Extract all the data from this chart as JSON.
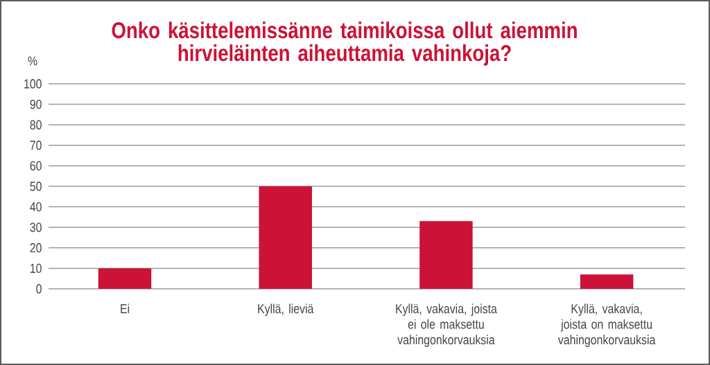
{
  "chart_data": {
    "type": "bar",
    "title": "Onko käsittelemissänne taimikoissa ollut aiemmin hirvieläinten aiheuttamia vahinkoja?",
    "ylabel": "%",
    "categories": [
      "Ei",
      "Kyllä, lieviä",
      "Kyllä, vakavia, joista ei ole maksettu vahingonkorvauksia",
      "Kyllä, vakavia, joista on maksettu vahingonkorvauksia"
    ],
    "values": [
      10,
      50,
      33,
      7
    ],
    "color": "#cc1236",
    "ylim": [
      0,
      100
    ],
    "yticks": [
      0,
      10,
      20,
      30,
      40,
      50,
      60,
      70,
      80,
      90,
      100
    ],
    "grid": "y"
  }
}
